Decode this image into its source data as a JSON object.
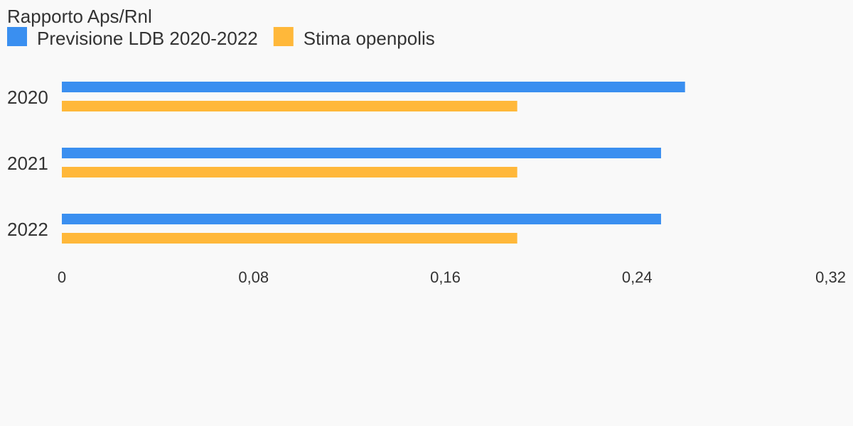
{
  "chart_data": {
    "type": "bar",
    "orientation": "horizontal",
    "title": "Rapporto Aps/Rnl",
    "categories": [
      "2020",
      "2021",
      "2022"
    ],
    "series": [
      {
        "name": "Previsione LDB 2020-2022",
        "color": "#3a8ff0",
        "values": [
          0.26,
          0.25,
          0.25
        ]
      },
      {
        "name": "Stima openpolis",
        "color": "#ffb83a",
        "values": [
          0.19,
          0.19,
          0.19
        ]
      }
    ],
    "xlim": [
      0,
      0.32
    ],
    "xticks": [
      0,
      0.08,
      0.16,
      0.24,
      0.32
    ],
    "xtick_labels": [
      "0",
      "0,08",
      "0,16",
      "0,24",
      "0,32"
    ],
    "grid": false,
    "legend_position": "top-left"
  }
}
